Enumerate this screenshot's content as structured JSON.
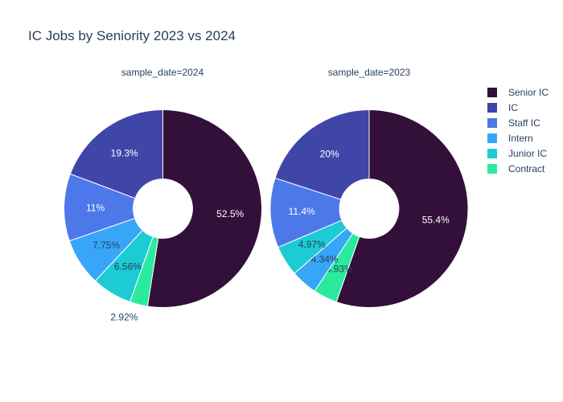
{
  "chart_data": {
    "type": "pie",
    "title": "IC Jobs by Seniority 2023 vs 2024",
    "hole": 0.3,
    "legend": [
      {
        "name": "Senior IC",
        "color": "#321039"
      },
      {
        "name": "IC",
        "color": "#3f46a8"
      },
      {
        "name": "Staff IC",
        "color": "#4c78ea"
      },
      {
        "name": "Intern",
        "color": "#38a6f8"
      },
      {
        "name": "Junior IC",
        "color": "#1dcbd4"
      },
      {
        "name": "Contract",
        "color": "#2aeaa0"
      }
    ],
    "pies": [
      {
        "subtitle": "sample_date=2024",
        "slices": [
          {
            "name": "Senior IC",
            "value": 52.5,
            "label": "52.5%"
          },
          {
            "name": "Contract",
            "value": 2.92,
            "label": "2.92%"
          },
          {
            "name": "Junior IC",
            "value": 6.56,
            "label": "6.56%"
          },
          {
            "name": "Intern",
            "value": 7.75,
            "label": "7.75%"
          },
          {
            "name": "Staff IC",
            "value": 11,
            "label": "11%"
          },
          {
            "name": "IC",
            "value": 19.3,
            "label": "19.3%"
          }
        ]
      },
      {
        "subtitle": "sample_date=2023",
        "slices": [
          {
            "name": "Senior IC",
            "value": 55.4,
            "label": "55.4%"
          },
          {
            "name": "Contract",
            "value": 3.93,
            "label": "3.93%"
          },
          {
            "name": "Intern",
            "value": 4.34,
            "label": "4.34%"
          },
          {
            "name": "Junior IC",
            "value": 4.97,
            "label": "4.97%"
          },
          {
            "name": "Staff IC",
            "value": 11.4,
            "label": "11.4%"
          },
          {
            "name": "IC",
            "value": 20,
            "label": "20%"
          }
        ]
      }
    ]
  }
}
